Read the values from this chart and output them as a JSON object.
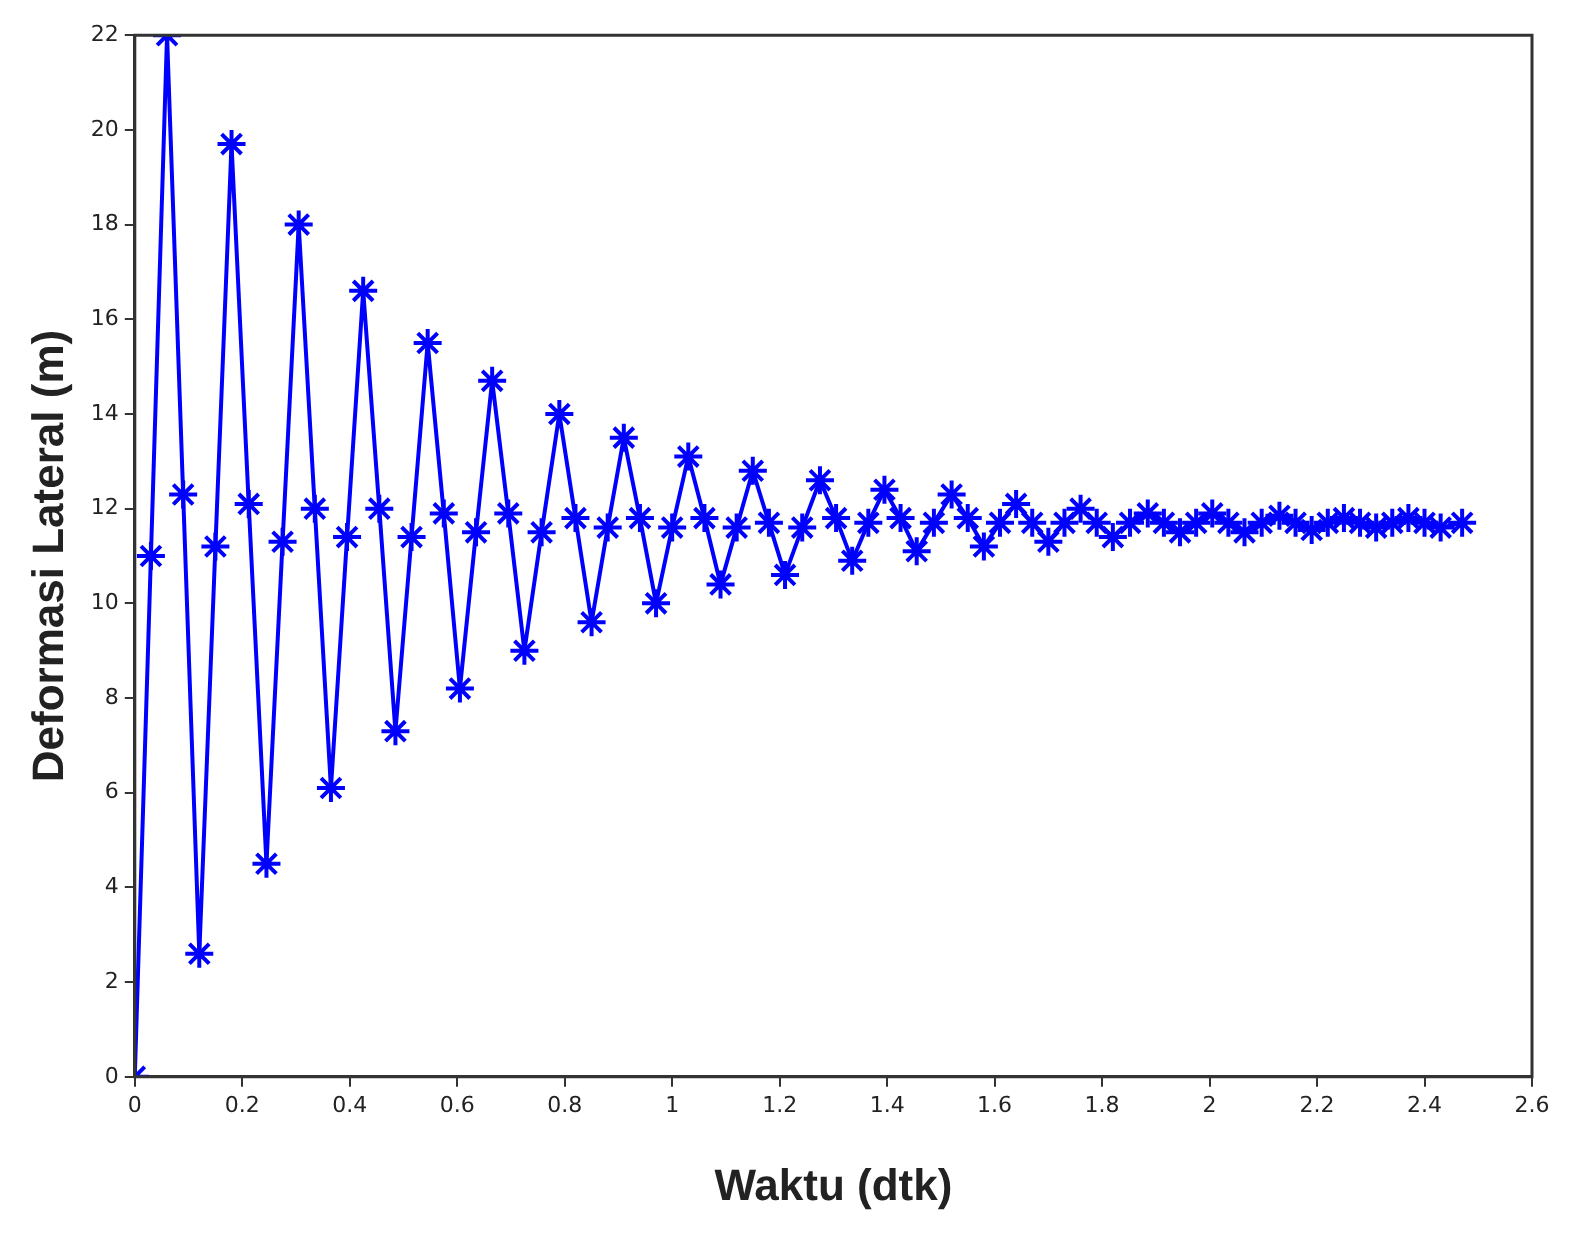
{
  "chart_data": {
    "type": "line",
    "xlabel": "Waktu (dtk)",
    "ylabel": "Deformasi Lateral (m)",
    "xlim": [
      0,
      2.6
    ],
    "xticks": [
      0,
      0.2,
      0.4,
      0.6,
      0.8,
      1,
      1.2,
      1.4,
      1.6,
      1.8,
      2,
      2.2,
      2.4,
      2.6
    ],
    "ylim": [
      0,
      22
    ],
    "yticks": [
      0,
      2,
      4,
      6,
      8,
      10,
      12,
      14,
      16,
      18,
      20,
      22
    ],
    "grid": false,
    "legend": false,
    "marker": "cross",
    "line_style": "solid",
    "series": [
      {
        "color": "#0000ff",
        "x": [
          0,
          0.03,
          0.06,
          0.09,
          0.12,
          0.15,
          0.18,
          0.212,
          0.245,
          0.275,
          0.305,
          0.335,
          0.365,
          0.395,
          0.425,
          0.455,
          0.485,
          0.515,
          0.545,
          0.575,
          0.605,
          0.635,
          0.665,
          0.695,
          0.725,
          0.757,
          0.79,
          0.82,
          0.85,
          0.88,
          0.91,
          0.94,
          0.97,
          1.0,
          1.03,
          1.06,
          1.09,
          1.12,
          1.15,
          1.18,
          1.21,
          1.242,
          1.275,
          1.305,
          1.335,
          1.365,
          1.395,
          1.425,
          1.455,
          1.487,
          1.52,
          1.55,
          1.58,
          1.61,
          1.64,
          1.67,
          1.7,
          1.73,
          1.76,
          1.79,
          1.82,
          1.852,
          1.885,
          1.915,
          1.945,
          1.975,
          2.005,
          2.035,
          2.065,
          2.097,
          2.13,
          2.16,
          2.19,
          2.22,
          2.25,
          2.28,
          2.31,
          2.34,
          2.37,
          2.4,
          2.43,
          2.47
        ],
        "values": [
          0,
          11,
          22,
          12.3,
          2.6,
          11.2,
          19.7,
          12.1,
          4.5,
          11.3,
          18,
          12,
          6.1,
          11.4,
          16.6,
          12,
          7.3,
          11.4,
          15.5,
          11.9,
          8.2,
          11.5,
          14.7,
          11.9,
          9.0,
          11.5,
          14.0,
          11.8,
          9.6,
          11.6,
          13.5,
          11.8,
          10.0,
          11.6,
          13.1,
          11.8,
          10.4,
          11.6,
          12.8,
          11.7,
          10.6,
          11.6,
          12.6,
          11.8,
          10.9,
          11.7,
          12.4,
          11.8,
          11.1,
          11.7,
          12.3,
          11.8,
          11.2,
          11.7,
          12.1,
          11.7,
          11.3,
          11.7,
          12.0,
          11.7,
          11.4,
          11.7,
          11.9,
          11.7,
          11.5,
          11.7,
          11.9,
          11.7,
          11.5,
          11.7,
          11.85,
          11.7,
          11.55,
          11.7,
          11.8,
          11.7,
          11.6,
          11.7,
          11.8,
          11.7,
          11.6,
          11.7
        ]
      }
    ]
  }
}
